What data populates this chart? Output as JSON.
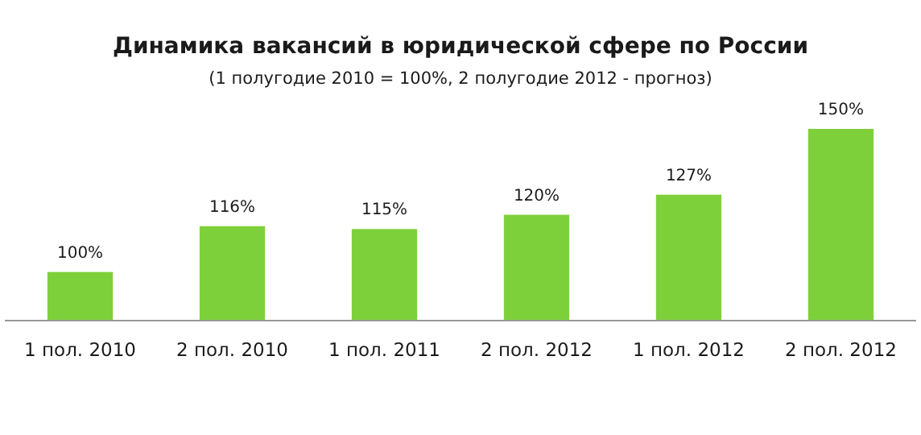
{
  "chart_data": {
    "type": "bar",
    "title": "Динамика вакансий в юридической сфере по России",
    "subtitle": "(1 полугодие 2010 = 100%, 2 полугодие 2012 - прогноз)",
    "categories": [
      "1 пол. 2010",
      "2 пол. 2010",
      "1 пол. 2011",
      "2 пол. 2012",
      "1 пол. 2012",
      "2 пол. 2012"
    ],
    "values": [
      100,
      116,
      115,
      120,
      127,
      150
    ],
    "color": "#7ed03b",
    "value_labels": [
      "100%",
      "116%",
      "115%",
      "120%",
      "127%",
      "150%"
    ],
    "ylim": [
      83,
      150
    ]
  }
}
